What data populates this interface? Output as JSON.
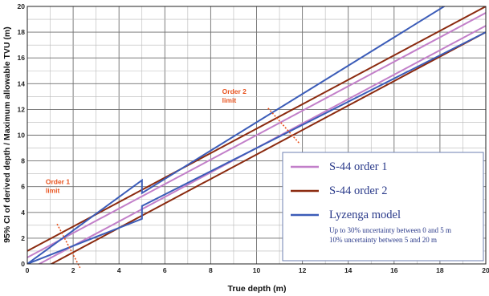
{
  "chart_data": {
    "type": "line",
    "xlabel": "True depth (m)",
    "ylabel": "95% CI of derived depth / Maximum allowable TVU (m)",
    "xlim": [
      0,
      20
    ],
    "ylim": [
      0,
      20
    ],
    "x_ticks": [
      "0",
      "2",
      "4",
      "6",
      "8",
      "10",
      "12",
      "14",
      "16",
      "18",
      "20"
    ],
    "y_ticks": [
      "0",
      "2",
      "4",
      "6",
      "8",
      "10",
      "12",
      "14",
      "16",
      "18",
      "20"
    ],
    "grid": true,
    "legend_position": "bottom-right",
    "series": [
      {
        "name": "S-44 order 1",
        "color": "#c27fc9",
        "x": [
          0,
          20
        ],
        "upper": [
          0.5,
          19.5
        ],
        "lower": [
          -0.5,
          18.5
        ]
      },
      {
        "name": "S-44 order 2",
        "color": "#8b2a0f",
        "x": [
          0,
          20
        ],
        "upper": [
          1.0,
          20.0
        ],
        "lower": [
          -1.0,
          18.0
        ]
      },
      {
        "name": "Lyzenga model",
        "color": "#3b5cb8",
        "x": [
          0,
          5,
          5,
          20
        ],
        "upper": [
          0,
          6.5,
          5.5,
          22.0
        ],
        "lower": [
          0,
          3.5,
          4.5,
          18.0
        ]
      }
    ],
    "legend_note": [
      "Up to 30% uncertainty  between 0 and 5 m",
      "10% uncertainty between 5 and 20 m"
    ],
    "annotations": [
      {
        "text": [
          "Order 1",
          "limit"
        ],
        "color": "#e8531e",
        "x": 0.8,
        "y": 6.2,
        "line_from": [
          1.3,
          3.1
        ],
        "line_to": [
          2.3,
          -0.3
        ]
      },
      {
        "text": [
          "Order 2",
          "limit"
        ],
        "color": "#e8531e",
        "x": 8.5,
        "y": 13.2,
        "line_from": [
          10.5,
          12.1
        ],
        "line_to": [
          11.9,
          9.3
        ]
      }
    ]
  }
}
